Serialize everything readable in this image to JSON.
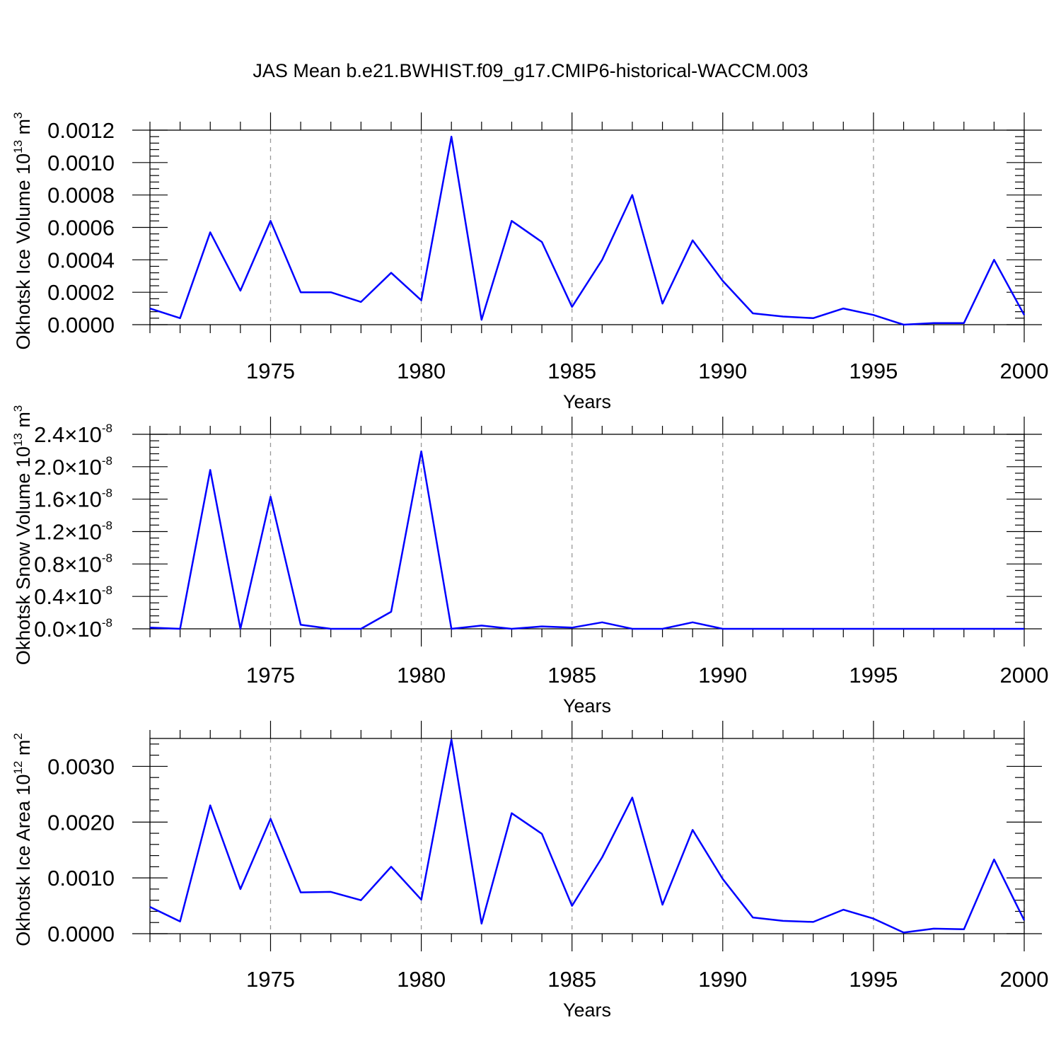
{
  "title": "JAS Mean b.e21.BWHIST.f09_g17.CMIP6-historical-WACCM.003",
  "colors": {
    "line": "#0000ff",
    "grid": "#999999",
    "axis": "#000000",
    "background": "#ffffff"
  },
  "chart_data": [
    {
      "type": "line",
      "name": "ice-volume",
      "xlabel": "Years",
      "ylabel": {
        "text": "Okhotsk Ice Volume 10",
        "sup": "13",
        "unit": " m",
        "unit_sup": "3"
      },
      "xlim": [
        1971,
        2000
      ],
      "ylim": [
        0.0,
        0.0012
      ],
      "xticks": [
        1975,
        1980,
        1985,
        1990,
        1995,
        2000
      ],
      "yticks": [
        0.0,
        0.0002,
        0.0004,
        0.0006,
        0.0008,
        0.001,
        0.0012
      ],
      "ytick_labels": [
        "0.0000",
        "0.0002",
        "0.0004",
        "0.0006",
        "0.0008",
        "0.0010",
        "0.0012"
      ],
      "x": [
        1971,
        1972,
        1973,
        1974,
        1975,
        1976,
        1977,
        1978,
        1979,
        1980,
        1981,
        1982,
        1983,
        1984,
        1985,
        1986,
        1987,
        1988,
        1989,
        1990,
        1991,
        1992,
        1993,
        1994,
        1995,
        1996,
        1997,
        1998,
        1999,
        2000
      ],
      "y": [
        0.0001,
        4e-05,
        0.00057,
        0.00021,
        0.00064,
        0.0002,
        0.0002,
        0.00014,
        0.00032,
        0.00015,
        0.00116,
        3e-05,
        0.00064,
        0.00051,
        0.00011,
        0.0004,
        0.0008,
        0.00013,
        0.00052,
        0.00027,
        7e-05,
        5e-05,
        4e-05,
        0.0001,
        6e-05,
        0.0,
        1e-05,
        1e-05,
        0.0004,
        6e-05
      ]
    },
    {
      "type": "line",
      "name": "snow-volume",
      "xlabel": "Years",
      "ylabel": {
        "text": "Okhotsk Snow Volume 10",
        "sup": "13",
        "unit": " m",
        "unit_sup": "3"
      },
      "xlim": [
        1971,
        2000
      ],
      "ylim": [
        0.0,
        2.4e-08
      ],
      "xticks": [
        1975,
        1980,
        1985,
        1990,
        1995,
        2000
      ],
      "yticks": [
        0.0,
        4e-09,
        8e-09,
        1.2e-08,
        1.6e-08,
        2e-08,
        2.4e-08
      ],
      "ytick_labels": [
        "0.0",
        "0.4",
        "0.8",
        "1.2",
        "1.6",
        "2.0",
        "2.4"
      ],
      "ytick_suffix": "×10",
      "ytick_exp": "-8",
      "x": [
        1971,
        1972,
        1973,
        1974,
        1975,
        1976,
        1977,
        1978,
        1979,
        1980,
        1981,
        1982,
        1983,
        1984,
        1985,
        1986,
        1987,
        1988,
        1989,
        1990,
        1991,
        1992,
        1993,
        1994,
        1995,
        1996,
        1997,
        1998,
        1999,
        2000
      ],
      "y": [
        1.5e-10,
        0.0,
        1.96e-08,
        0.0,
        1.63e-08,
        5e-10,
        0.0,
        0.0,
        2.1e-09,
        2.19e-08,
        0.0,
        4e-10,
        0.0,
        3e-10,
        1.5e-10,
        8e-10,
        0.0,
        0.0,
        8e-10,
        0.0,
        0.0,
        0.0,
        0.0,
        0.0,
        0.0,
        0.0,
        0.0,
        0.0,
        0.0,
        0.0
      ]
    },
    {
      "type": "line",
      "name": "ice-area",
      "xlabel": "Years",
      "ylabel": {
        "text": "Okhotsk Ice Area 10",
        "sup": "12",
        "unit": " m",
        "unit_sup": "2"
      },
      "xlim": [
        1971,
        2000
      ],
      "ylim": [
        0.0,
        0.0035
      ],
      "xticks": [
        1975,
        1980,
        1985,
        1990,
        1995,
        2000
      ],
      "yticks": [
        0.0,
        0.001,
        0.002,
        0.003
      ],
      "ytick_labels": [
        "0.0000",
        "0.0010",
        "0.0020",
        "0.0030"
      ],
      "x": [
        1971,
        1972,
        1973,
        1974,
        1975,
        1976,
        1977,
        1978,
        1979,
        1980,
        1981,
        1982,
        1983,
        1984,
        1985,
        1986,
        1987,
        1988,
        1989,
        1990,
        1991,
        1992,
        1993,
        1994,
        1995,
        1996,
        1997,
        1998,
        1999,
        2000
      ],
      "y": [
        0.00048,
        0.00022,
        0.0023,
        0.0008,
        0.00206,
        0.00074,
        0.00075,
        0.0006,
        0.0012,
        0.00061,
        0.00348,
        0.00018,
        0.00216,
        0.00179,
        0.0005,
        0.00137,
        0.00244,
        0.00052,
        0.00186,
        0.00098,
        0.00029,
        0.00023,
        0.00021,
        0.00043,
        0.00027,
        2e-05,
        9e-05,
        8e-05,
        0.00133,
        0.00024
      ]
    }
  ]
}
